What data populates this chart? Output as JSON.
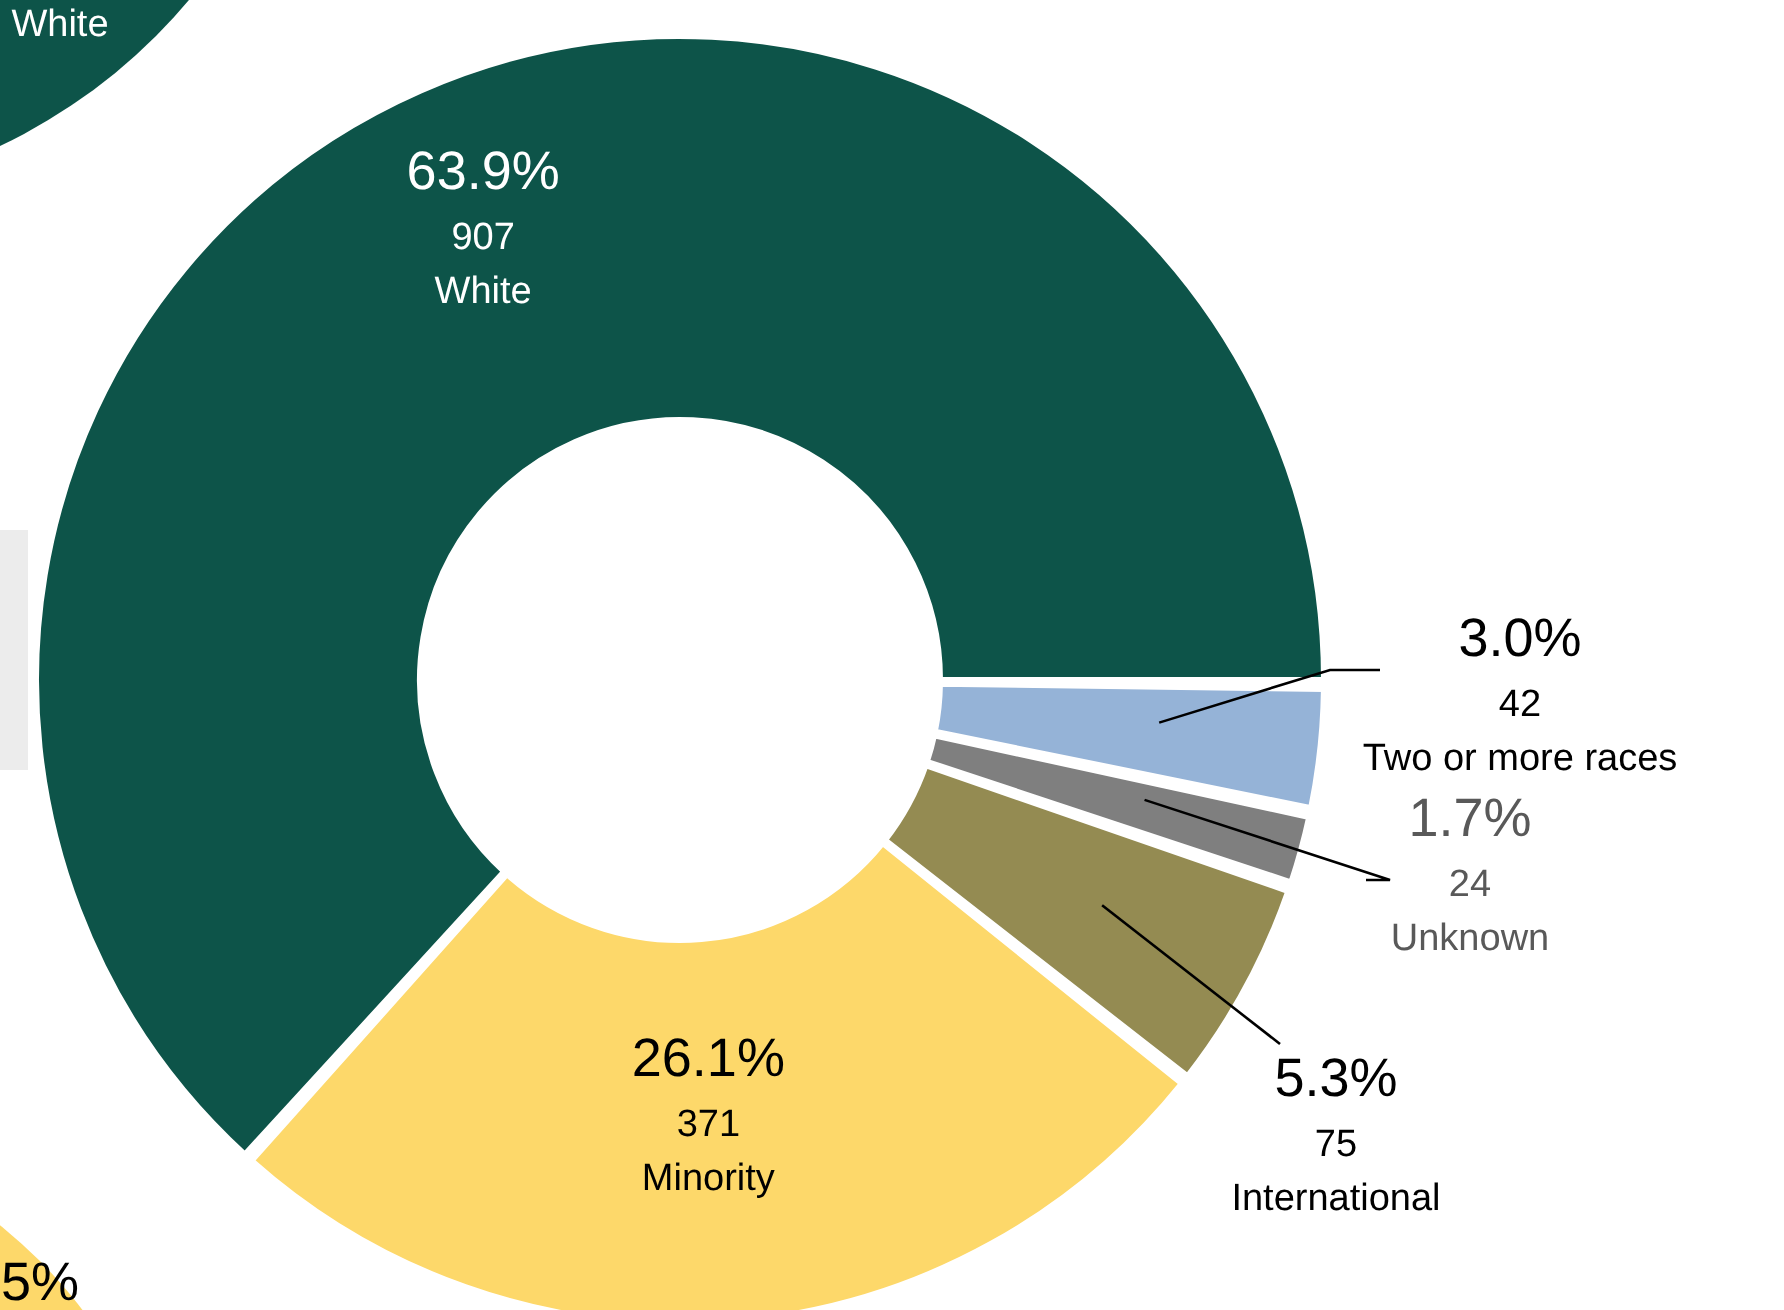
{
  "chart_data": {
    "type": "donut",
    "categories": [
      "White",
      "Minority",
      "International",
      "Unknown",
      "Two or more races"
    ],
    "values": [
      63.9,
      26.1,
      5.3,
      1.7,
      3.0
    ],
    "value_labels": [
      "63.9%",
      "26.1%",
      "5.3%",
      "1.7%",
      "3.0%"
    ],
    "colors": [
      "#0d5449",
      "#fdd86a",
      "#948b52",
      "#7f7f7f",
      "#95b3d7"
    ],
    "annotations": [
      "White",
      "5%",
      {
        "text": "907",
        "x": "White"
      },
      {
        "text": "371",
        "x": "Minority"
      },
      {
        "text": "75",
        "x": "International"
      },
      {
        "text": "24",
        "x": "Unknown"
      },
      {
        "text": "42",
        "x": "Two or more races"
      }
    ]
  }
}
